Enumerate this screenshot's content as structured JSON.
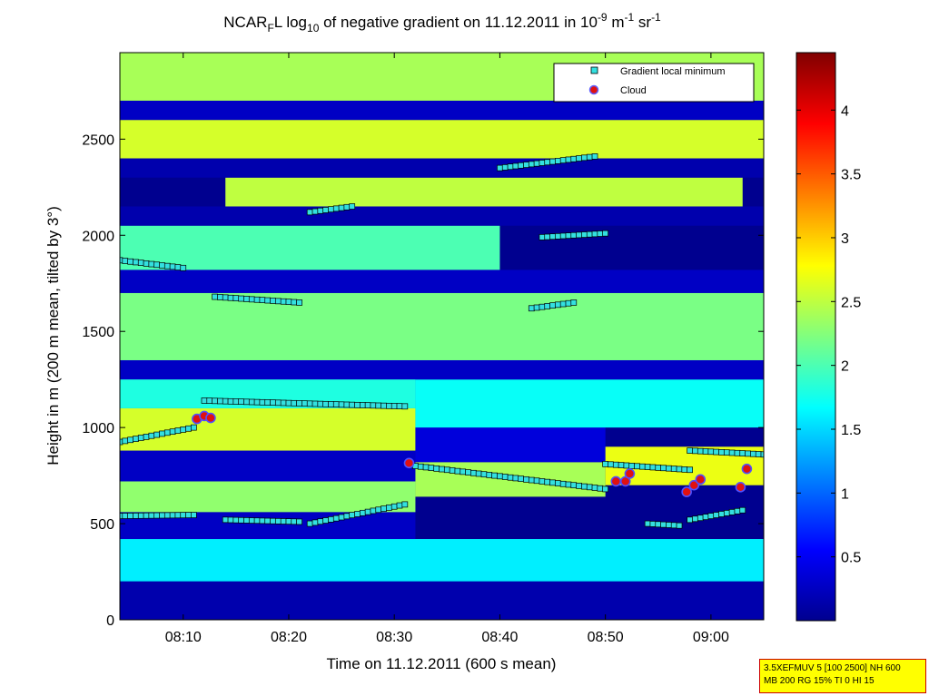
{
  "chart_data": {
    "type": "heatmap",
    "title": {
      "pre": "NCAR",
      "sub1": "F",
      "mid1": "L log",
      "sub2": "10",
      "mid2": " of negative gradient on 11.12.2011 in 10",
      "sup1": "-9",
      "mid3": " m",
      "sup2": "-1",
      "mid4": " sr",
      "sup3": "-1"
    },
    "xlabel": "Time on 11.12.2011 (600 s mean)",
    "ylabel": "Height in m (200 m mean, tilted by 3°)",
    "xlim": [
      "08:04",
      "09:05"
    ],
    "ylim": [
      0,
      2950
    ],
    "x_ticks": [
      "08:10",
      "08:20",
      "08:30",
      "08:40",
      "08:50",
      "09:00"
    ],
    "y_ticks": [
      0,
      500,
      1000,
      1500,
      2000,
      2500
    ],
    "colorbar": {
      "range": [
        0,
        4.45
      ],
      "ticks": [
        0.5,
        1,
        1.5,
        2,
        2.5,
        3,
        3.5,
        4
      ],
      "tick_labels": [
        "0.5",
        "1",
        "1.5",
        "2",
        "2.5",
        "3",
        "3.5",
        "4"
      ],
      "colormap": "jet"
    },
    "legend": {
      "position": "top-right",
      "entries": [
        {
          "label": "Gradient local minimum",
          "marker": "square",
          "color": "#33e0e0"
        },
        {
          "label": "Cloud",
          "marker": "circle",
          "color": "#e01010"
        }
      ]
    },
    "layers": [
      {
        "t0": "08:04",
        "t1": "09:05",
        "h0": 0,
        "h1": 200,
        "value": 0.2
      },
      {
        "t0": "08:04",
        "t1": "09:05",
        "h0": 200,
        "h1": 420,
        "value": 1.6
      },
      {
        "t0": "08:04",
        "t1": "08:32",
        "h0": 420,
        "h1": 560,
        "value": 0.3
      },
      {
        "t0": "08:04",
        "t1": "08:32",
        "h0": 560,
        "h1": 720,
        "value": 2.3
      },
      {
        "t0": "08:04",
        "t1": "08:32",
        "h0": 720,
        "h1": 880,
        "value": 0.3
      },
      {
        "t0": "08:04",
        "t1": "08:32",
        "h0": 880,
        "h1": 1100,
        "value": 2.6
      },
      {
        "t0": "08:04",
        "t1": "08:32",
        "h0": 1100,
        "h1": 1260,
        "value": 1.8
      },
      {
        "t0": "08:32",
        "t1": "08:50",
        "h0": 640,
        "h1": 820,
        "value": 2.4
      },
      {
        "t0": "08:32",
        "t1": "08:50",
        "h0": 820,
        "h1": 1000,
        "value": 0.4
      },
      {
        "t0": "08:32",
        "t1": "09:05",
        "h0": 1000,
        "h1": 1250,
        "value": 1.7
      },
      {
        "t0": "08:50",
        "t1": "09:05",
        "h0": 700,
        "h1": 900,
        "value": 2.7
      },
      {
        "t0": "08:04",
        "t1": "09:05",
        "h0": 1250,
        "h1": 1350,
        "value": 0.3
      },
      {
        "t0": "08:04",
        "t1": "09:05",
        "h0": 1350,
        "h1": 1700,
        "value": 2.2
      },
      {
        "t0": "08:04",
        "t1": "09:05",
        "h0": 1700,
        "h1": 1820,
        "value": 0.3
      },
      {
        "t0": "08:04",
        "t1": "08:40",
        "h0": 1820,
        "h1": 2050,
        "value": 2.0
      },
      {
        "t0": "08:04",
        "t1": "09:05",
        "h0": 2050,
        "h1": 2150,
        "value": 0.2
      },
      {
        "t0": "08:14",
        "t1": "09:03",
        "h0": 2150,
        "h1": 2300,
        "value": 2.5
      },
      {
        "t0": "08:04",
        "t1": "09:05",
        "h0": 2300,
        "h1": 2400,
        "value": 0.2
      },
      {
        "t0": "08:04",
        "t1": "09:05",
        "h0": 2400,
        "h1": 2600,
        "value": 2.6
      },
      {
        "t0": "08:04",
        "t1": "09:05",
        "h0": 2600,
        "h1": 2700,
        "value": 0.3
      },
      {
        "t0": "08:04",
        "t1": "09:05",
        "h0": 2700,
        "h1": 2950,
        "value": 2.4
      }
    ],
    "series": [
      {
        "name": "Gradient local minimum",
        "tracks": [
          {
            "t0": "08:04",
            "t1": "08:11",
            "h0": 540,
            "h1": 545
          },
          {
            "t0": "08:14",
            "t1": "08:21",
            "h0": 520,
            "h1": 510
          },
          {
            "t0": "08:22",
            "t1": "08:31",
            "h0": 500,
            "h1": 600
          },
          {
            "t0": "08:04",
            "t1": "08:11",
            "h0": 925,
            "h1": 1000
          },
          {
            "t0": "08:12",
            "t1": "08:31",
            "h0": 1140,
            "h1": 1110
          },
          {
            "t0": "08:32",
            "t1": "08:50",
            "h0": 800,
            "h1": 680
          },
          {
            "t0": "08:50",
            "t1": "08:58",
            "h0": 810,
            "h1": 780
          },
          {
            "t0": "08:58",
            "t1": "09:05",
            "h0": 880,
            "h1": 860
          },
          {
            "t0": "08:54",
            "t1": "08:57",
            "h0": 500,
            "h1": 490
          },
          {
            "t0": "08:58",
            "t1": "09:03",
            "h0": 520,
            "h1": 570
          },
          {
            "t0": "08:04",
            "t1": "08:10",
            "h0": 1870,
            "h1": 1830
          },
          {
            "t0": "08:13",
            "t1": "08:21",
            "h0": 1680,
            "h1": 1650
          },
          {
            "t0": "08:43",
            "t1": "08:47",
            "h0": 1620,
            "h1": 1650
          },
          {
            "t0": "08:40",
            "t1": "08:49",
            "h0": 2350,
            "h1": 2410
          },
          {
            "t0": "08:44",
            "t1": "08:50",
            "h0": 1990,
            "h1": 2010
          },
          {
            "t0": "08:22",
            "t1": "08:26",
            "h0": 2120,
            "h1": 2150
          }
        ]
      },
      {
        "name": "Cloud",
        "points": [
          {
            "t": "08:11.3",
            "h": 1045
          },
          {
            "t": "08:12.0",
            "h": 1060
          },
          {
            "t": "08:12.6",
            "h": 1050
          },
          {
            "t": "08:31.4",
            "h": 815
          },
          {
            "t": "08:51.0",
            "h": 720
          },
          {
            "t": "08:51.9",
            "h": 720
          },
          {
            "t": "08:52.3",
            "h": 760
          },
          {
            "t": "08:57.7",
            "h": 665
          },
          {
            "t": "08:58.4",
            "h": 700
          },
          {
            "t": "08:59.0",
            "h": 730
          },
          {
            "t": "09:02.8",
            "h": 690
          },
          {
            "t": "09:03.4",
            "h": 785
          }
        ]
      }
    ]
  },
  "info_box": {
    "line1": "3.5XEFMUV 5 [100 2500] NH 600",
    "line2": "MB 200 RG 15% TI 0 HI 15"
  }
}
